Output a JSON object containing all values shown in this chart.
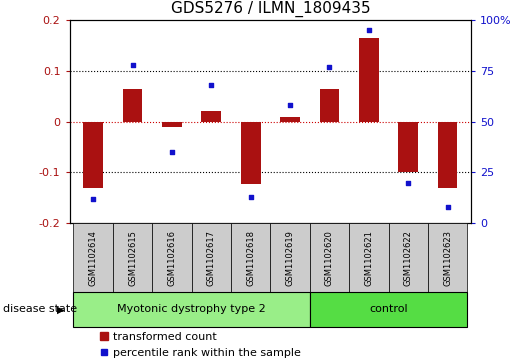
{
  "title": "GDS5276 / ILMN_1809435",
  "samples": [
    "GSM1102614",
    "GSM1102615",
    "GSM1102616",
    "GSM1102617",
    "GSM1102618",
    "GSM1102619",
    "GSM1102620",
    "GSM1102621",
    "GSM1102622",
    "GSM1102623"
  ],
  "red_values": [
    -0.13,
    0.065,
    -0.01,
    0.02,
    -0.122,
    0.01,
    0.065,
    0.165,
    -0.1,
    -0.13
  ],
  "blue_values": [
    12,
    78,
    35,
    68,
    13,
    58,
    77,
    95,
    20,
    8
  ],
  "ylim_left": [
    -0.2,
    0.2
  ],
  "ylim_right": [
    0,
    100
  ],
  "yticks_left": [
    -0.2,
    -0.1,
    0.0,
    0.1,
    0.2
  ],
  "yticks_right": [
    0,
    25,
    50,
    75,
    100
  ],
  "ytick_labels_right": [
    "0",
    "25",
    "50",
    "75",
    "100%"
  ],
  "group1_label": "Myotonic dystrophy type 2",
  "group2_label": "control",
  "group1_count": 6,
  "group2_count": 4,
  "disease_state_label": "disease state",
  "legend1_label": "transformed count",
  "legend2_label": "percentile rank within the sample",
  "red_color": "#AA1111",
  "blue_color": "#1111CC",
  "group1_color": "#99EE88",
  "group2_color": "#55DD44",
  "sample_box_color": "#CCCCCC",
  "bar_width": 0.5,
  "dotted_line_color": "#000000",
  "zero_line_color": "#CC0000",
  "title_fontsize": 11,
  "tick_fontsize": 8,
  "legend_fontsize": 8,
  "sample_fontsize": 6,
  "label_fontsize": 8
}
